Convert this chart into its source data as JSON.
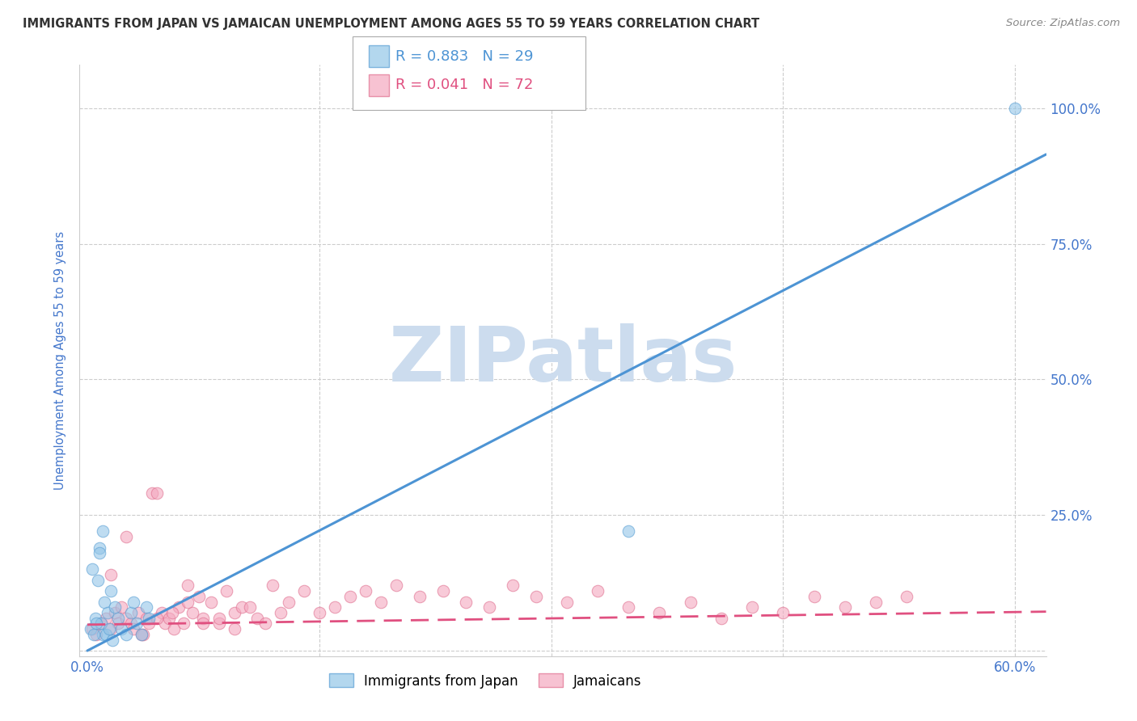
{
  "title": "IMMIGRANTS FROM JAPAN VS JAMAICAN UNEMPLOYMENT AMONG AGES 55 TO 59 YEARS CORRELATION CHART",
  "source": "Source: ZipAtlas.com",
  "ylabel": "Unemployment Among Ages 55 to 59 years",
  "watermark": "ZIPatlas",
  "y_ticks": [
    0.0,
    0.25,
    0.5,
    0.75,
    1.0
  ],
  "y_tick_labels": [
    "",
    "25.0%",
    "50.0%",
    "75.0%",
    "100.0%"
  ],
  "xlim": [
    -0.005,
    0.62
  ],
  "ylim": [
    -0.01,
    1.08
  ],
  "legend_blue_label": "Immigrants from Japan",
  "legend_pink_label": "Jamaicans",
  "r_blue": "R = 0.883",
  "n_blue": "N = 29",
  "r_pink": "R = 0.041",
  "n_pink": "N = 72",
  "blue_scatter_x": [
    0.002,
    0.005,
    0.007,
    0.008,
    0.009,
    0.01,
    0.011,
    0.012,
    0.013,
    0.015,
    0.016,
    0.018,
    0.02,
    0.022,
    0.025,
    0.028,
    0.03,
    0.032,
    0.035,
    0.038,
    0.04,
    0.003,
    0.006,
    0.008,
    0.01,
    0.014,
    0.004,
    0.35,
    0.6
  ],
  "blue_scatter_y": [
    0.04,
    0.06,
    0.13,
    0.19,
    0.05,
    0.03,
    0.09,
    0.03,
    0.07,
    0.11,
    0.02,
    0.08,
    0.06,
    0.04,
    0.03,
    0.07,
    0.09,
    0.05,
    0.03,
    0.08,
    0.06,
    0.15,
    0.05,
    0.18,
    0.22,
    0.04,
    0.03,
    0.22,
    1.0
  ],
  "pink_scatter_x": [
    0.003,
    0.006,
    0.009,
    0.012,
    0.015,
    0.018,
    0.02,
    0.022,
    0.025,
    0.028,
    0.03,
    0.033,
    0.036,
    0.038,
    0.04,
    0.042,
    0.045,
    0.048,
    0.05,
    0.053,
    0.056,
    0.059,
    0.062,
    0.065,
    0.068,
    0.072,
    0.075,
    0.08,
    0.085,
    0.09,
    0.095,
    0.1,
    0.11,
    0.12,
    0.13,
    0.14,
    0.15,
    0.16,
    0.17,
    0.18,
    0.19,
    0.2,
    0.215,
    0.23,
    0.245,
    0.26,
    0.275,
    0.29,
    0.31,
    0.33,
    0.35,
    0.37,
    0.39,
    0.41,
    0.43,
    0.45,
    0.47,
    0.49,
    0.51,
    0.53,
    0.015,
    0.025,
    0.035,
    0.045,
    0.055,
    0.065,
    0.075,
    0.085,
    0.095,
    0.105,
    0.115,
    0.125
  ],
  "pink_scatter_y": [
    0.04,
    0.03,
    0.05,
    0.06,
    0.04,
    0.07,
    0.05,
    0.08,
    0.06,
    0.05,
    0.04,
    0.07,
    0.03,
    0.06,
    0.05,
    0.29,
    0.29,
    0.07,
    0.05,
    0.06,
    0.04,
    0.08,
    0.05,
    0.12,
    0.07,
    0.1,
    0.06,
    0.09,
    0.05,
    0.11,
    0.07,
    0.08,
    0.06,
    0.12,
    0.09,
    0.11,
    0.07,
    0.08,
    0.1,
    0.11,
    0.09,
    0.12,
    0.1,
    0.11,
    0.09,
    0.08,
    0.12,
    0.1,
    0.09,
    0.11,
    0.08,
    0.07,
    0.09,
    0.06,
    0.08,
    0.07,
    0.1,
    0.08,
    0.09,
    0.1,
    0.14,
    0.21,
    0.03,
    0.06,
    0.07,
    0.09,
    0.05,
    0.06,
    0.04,
    0.08,
    0.05,
    0.07
  ],
  "blue_line_x": [
    0.0,
    0.62
  ],
  "blue_line_y": [
    0.0,
    0.915
  ],
  "pink_line_x": [
    0.0,
    0.62
  ],
  "pink_line_y": [
    0.048,
    0.072
  ],
  "blue_color": "#93c6e8",
  "blue_edge_color": "#5a9fd4",
  "blue_line_color": "#4d94d4",
  "pink_color": "#f4a8bf",
  "pink_edge_color": "#e07090",
  "pink_line_color": "#e05080",
  "title_color": "#333333",
  "axis_label_color": "#4477cc",
  "tick_color": "#4477cc",
  "grid_color": "#cccccc",
  "background_color": "#ffffff",
  "watermark_color": "#ccdcee"
}
